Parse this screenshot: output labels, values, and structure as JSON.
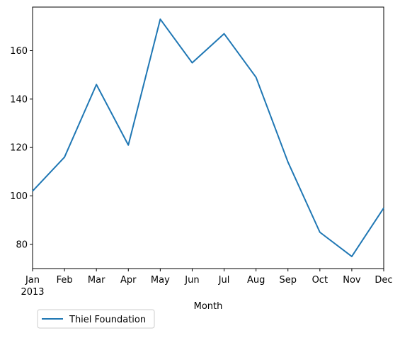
{
  "chart_data": {
    "type": "line",
    "categories": [
      "Jan",
      "Feb",
      "Mar",
      "Apr",
      "May",
      "Jun",
      "Jul",
      "Aug",
      "Sep",
      "Oct",
      "Nov",
      "Dec"
    ],
    "year_label": "2013",
    "series": [
      {
        "name": "Thiel Foundation",
        "color": "#1f77b4",
        "values": [
          102,
          116,
          146,
          121,
          173,
          155,
          167,
          149,
          114,
          85,
          75,
          95
        ]
      }
    ],
    "xlabel": "Month",
    "ylabel": "",
    "ylim": [
      70,
      178
    ],
    "yticks": [
      80,
      100,
      120,
      140,
      160
    ],
    "grid": false,
    "legend_position": "below-left"
  }
}
